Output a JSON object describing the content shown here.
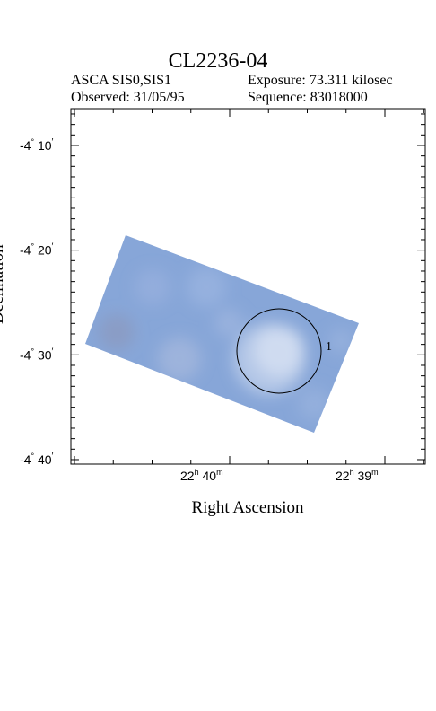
{
  "header": {
    "title": "CL2236-04",
    "instrument": "ASCA SIS0,SIS1",
    "exposure": "Exposure: 73.311 kilosec",
    "observed": "Observed: 31/05/95",
    "sequence": "Sequence: 83018000"
  },
  "chart_data": {
    "type": "heatmap",
    "xlabel": "Right Ascension",
    "ylabel": "Declination",
    "y_ticks": [
      {
        "deg": "-4",
        "min": "10",
        "dec": -4.1667
      },
      {
        "deg": "-4",
        "min": "20",
        "dec": -4.3333
      },
      {
        "deg": "-4",
        "min": "30",
        "dec": -4.5
      },
      {
        "deg": "-4",
        "min": "40",
        "dec": -4.6667
      }
    ],
    "x_ticks": [
      {
        "h": "22",
        "m": "40",
        "ra_min": 40
      },
      {
        "h": "22",
        "m": "39",
        "ra_min": 39
      }
    ],
    "region": {
      "label": "1"
    },
    "colors": {
      "fov_base": "#87a6d8",
      "bright": "#e6edf8",
      "dark": "#8d96b6",
      "frame": "#000000"
    }
  }
}
